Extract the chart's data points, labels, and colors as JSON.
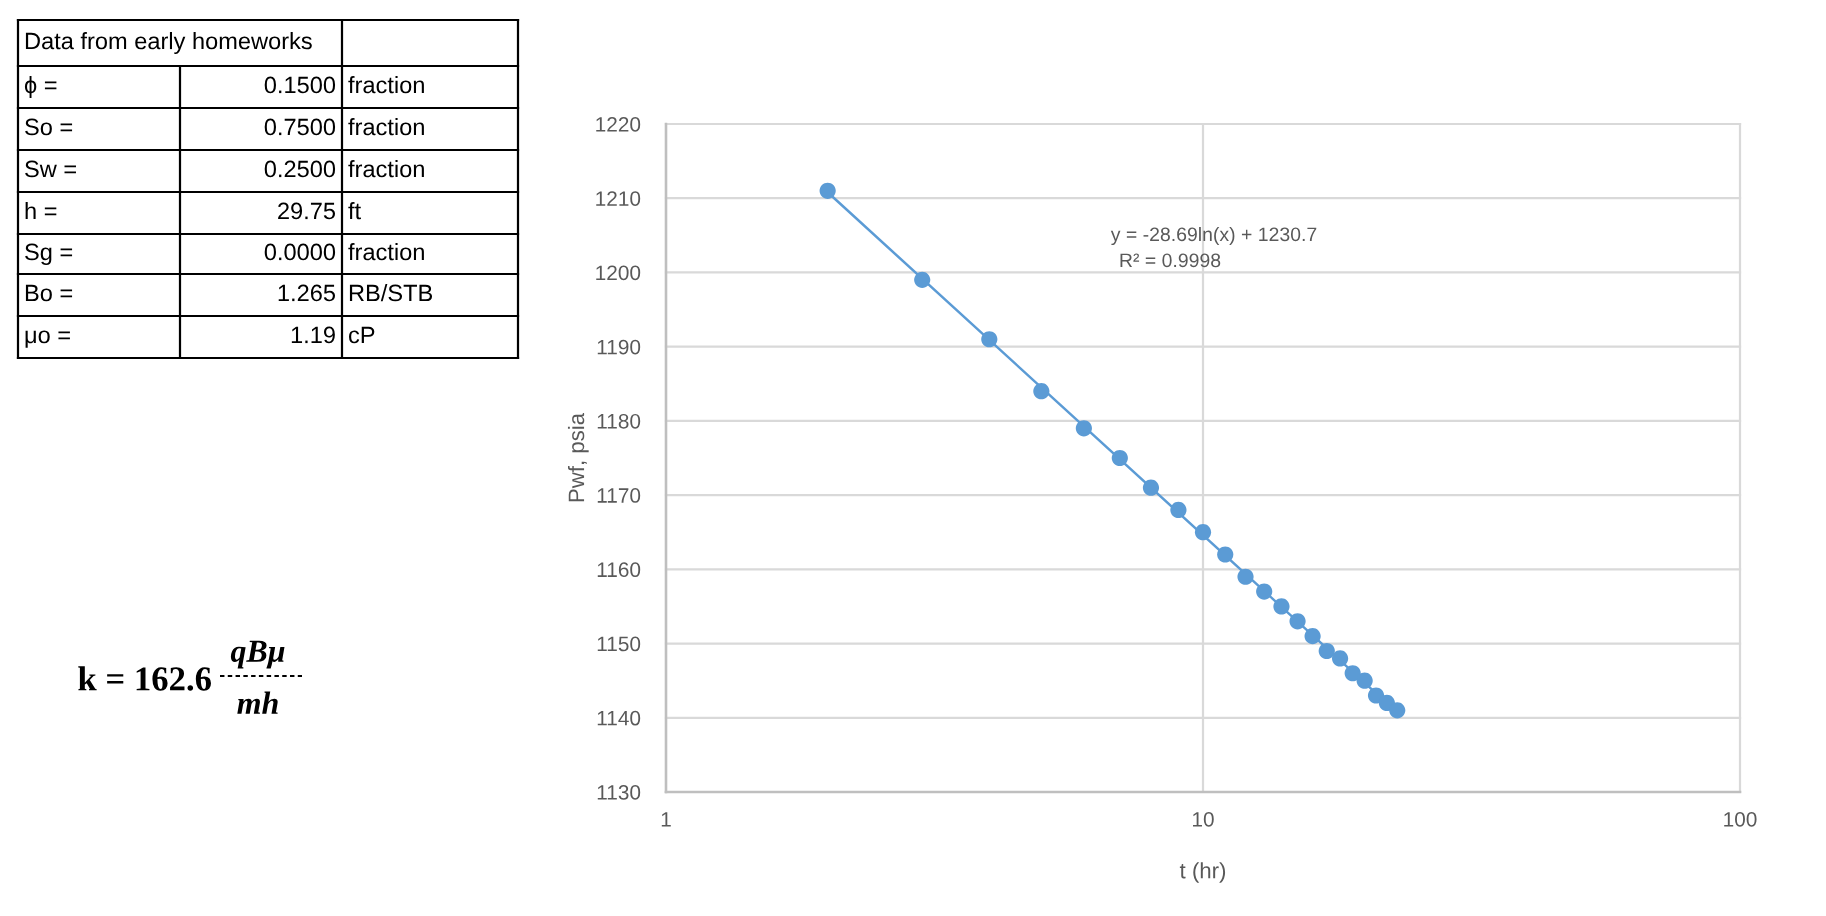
{
  "chart_data": {
    "type": "scatter",
    "xlabel": "t (hr)",
    "ylabel": "Pwf, psia",
    "log": "x",
    "xlim": [
      1,
      100
    ],
    "xticks": [
      1,
      10,
      100
    ],
    "ylim": [
      1130,
      1220
    ],
    "yticks": [
      1130,
      1140,
      1150,
      1160,
      1170,
      1180,
      1190,
      1200,
      1210,
      1220
    ],
    "grid": true,
    "series": [
      {
        "color": "#5b9bd5",
        "marker": "circle",
        "x": [
          2,
          3,
          4,
          5,
          6,
          7,
          8,
          9,
          10,
          11,
          12,
          13,
          14,
          15,
          16,
          17,
          18,
          19,
          20,
          21,
          22,
          23
        ],
        "values": [
          1211,
          1199,
          1191,
          1184,
          1179,
          1175,
          1171,
          1168,
          1165,
          1162,
          1159,
          1157,
          1155,
          1153,
          1151,
          1149,
          1148,
          1146,
          1145,
          1143,
          1142,
          1141
        ]
      },
      {
        "type": "line",
        "color": "#5b9bd5",
        "x": [
          2,
          23
        ],
        "values": [
          1210.8,
          1140.7
        ]
      }
    ],
    "annotations": [
      "Data from early homeworks",
      "ϕ =",
      "0.1500",
      "fraction",
      "So =",
      "0.7500",
      "fraction",
      "Sw =",
      "0.2500",
      "fraction",
      "h =",
      "29.75",
      "ft",
      "Sg =",
      "0.0000",
      "fraction",
      "Bo =",
      "1.265",
      "RB/STB",
      "μo =",
      "1.19",
      "cP",
      "k = 162.6",
      "qBμ",
      "mh",
      "y = -28.69ln(x) + 1230.7",
      "R² = 0.9998"
    ]
  }
}
